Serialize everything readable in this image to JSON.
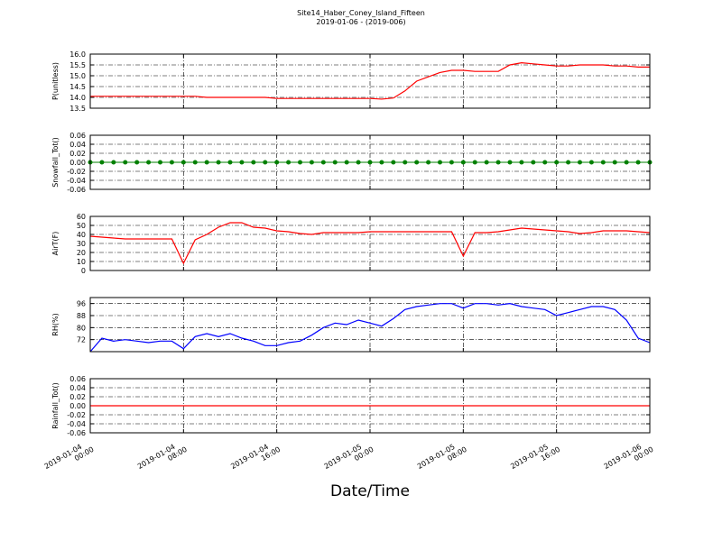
{
  "chart_data": [
    {
      "type": "line",
      "title": "Site14_Haber_Coney_Island_Fifteen",
      "subtitle": "2019-01-06 - (2019-006)",
      "ylabel": "P(unitless)",
      "color": "#ff0000",
      "grid": true,
      "markers": false,
      "x": [
        "2019-01-04 00:00",
        "2019-01-04 01:00",
        "2019-01-04 02:00",
        "2019-01-04 03:00",
        "2019-01-04 04:00",
        "2019-01-04 05:00",
        "2019-01-04 06:00",
        "2019-01-04 07:00",
        "2019-01-04 08:00",
        "2019-01-04 09:00",
        "2019-01-04 10:00",
        "2019-01-04 11:00",
        "2019-01-04 12:00",
        "2019-01-04 13:00",
        "2019-01-04 14:00",
        "2019-01-04 15:00",
        "2019-01-04 16:00",
        "2019-01-04 17:00",
        "2019-01-04 18:00",
        "2019-01-04 19:00",
        "2019-01-04 20:00",
        "2019-01-04 21:00",
        "2019-01-04 22:00",
        "2019-01-04 23:00",
        "2019-01-05 00:00",
        "2019-01-05 01:00",
        "2019-01-05 02:00",
        "2019-01-05 03:00",
        "2019-01-05 04:00",
        "2019-01-05 05:00",
        "2019-01-05 06:00",
        "2019-01-05 07:00",
        "2019-01-05 08:00",
        "2019-01-05 09:00",
        "2019-01-05 10:00",
        "2019-01-05 11:00",
        "2019-01-05 12:00",
        "2019-01-05 13:00",
        "2019-01-05 14:00",
        "2019-01-05 15:00",
        "2019-01-05 16:00",
        "2019-01-05 17:00",
        "2019-01-05 18:00",
        "2019-01-05 19:00",
        "2019-01-05 20:00",
        "2019-01-05 21:00",
        "2019-01-05 22:00",
        "2019-01-05 23:00",
        "2019-01-06 00:00"
      ],
      "values": [
        14.05,
        14.05,
        14.05,
        14.05,
        14.05,
        14.05,
        14.05,
        14.05,
        14.05,
        14.05,
        14.0,
        14.0,
        14.0,
        14.0,
        14.0,
        14.0,
        13.95,
        13.95,
        13.95,
        13.95,
        13.95,
        13.95,
        13.95,
        13.95,
        13.95,
        13.92,
        13.97,
        14.3,
        14.75,
        14.95,
        15.15,
        15.25,
        15.25,
        15.2,
        15.2,
        15.2,
        15.5,
        15.6,
        15.55,
        15.5,
        15.45,
        15.45,
        15.5,
        15.5,
        15.5,
        15.45,
        15.45,
        15.4,
        15.4
      ],
      "xlim": [
        "2019-01-04 00:00",
        "2019-01-06 00:00"
      ],
      "xticks": [
        "2019-01-04 00:00",
        "2019-01-04 08:00",
        "2019-01-04 16:00",
        "2019-01-05 00:00",
        "2019-01-05 08:00",
        "2019-01-05 16:00",
        "2019-01-06 00:00"
      ],
      "ylim": [
        13.5,
        16.0
      ],
      "yticks": [
        13.5,
        {
          "value": 14,
          "label": "14.0"
        },
        14.5,
        {
          "value": 15,
          "label": "15.0"
        },
        15.5,
        {
          "value": 16,
          "label": "16.0"
        }
      ]
    },
    {
      "type": "line",
      "ylabel": "Snowfall_Tot()",
      "color": "#008000",
      "grid": true,
      "markers": true,
      "x": [
        "2019-01-04 00:00",
        "2019-01-04 01:00",
        "2019-01-04 02:00",
        "2019-01-04 03:00",
        "2019-01-04 04:00",
        "2019-01-04 05:00",
        "2019-01-04 06:00",
        "2019-01-04 07:00",
        "2019-01-04 08:00",
        "2019-01-04 09:00",
        "2019-01-04 10:00",
        "2019-01-04 11:00",
        "2019-01-04 12:00",
        "2019-01-04 13:00",
        "2019-01-04 14:00",
        "2019-01-04 15:00",
        "2019-01-04 16:00",
        "2019-01-04 17:00",
        "2019-01-04 18:00",
        "2019-01-04 19:00",
        "2019-01-04 20:00",
        "2019-01-04 21:00",
        "2019-01-04 22:00",
        "2019-01-04 23:00",
        "2019-01-05 00:00",
        "2019-01-05 01:00",
        "2019-01-05 02:00",
        "2019-01-05 03:00",
        "2019-01-05 04:00",
        "2019-01-05 05:00",
        "2019-01-05 06:00",
        "2019-01-05 07:00",
        "2019-01-05 08:00",
        "2019-01-05 09:00",
        "2019-01-05 10:00",
        "2019-01-05 11:00",
        "2019-01-05 12:00",
        "2019-01-05 13:00",
        "2019-01-05 14:00",
        "2019-01-05 15:00",
        "2019-01-05 16:00",
        "2019-01-05 17:00",
        "2019-01-05 18:00",
        "2019-01-05 19:00",
        "2019-01-05 20:00",
        "2019-01-05 21:00",
        "2019-01-05 22:00",
        "2019-01-05 23:00",
        "2019-01-06 00:00"
      ],
      "values": [
        0,
        0,
        0,
        0,
        0,
        0,
        0,
        0,
        0,
        0,
        0,
        0,
        0,
        0,
        0,
        0,
        0,
        0,
        0,
        0,
        0,
        0,
        0,
        0,
        0,
        0,
        0,
        0,
        0,
        0,
        0,
        0,
        0,
        0,
        0,
        0,
        0,
        0,
        0,
        0,
        0,
        0,
        0,
        0,
        0,
        0,
        0,
        0,
        0
      ],
      "xlim": [
        "2019-01-04 00:00",
        "2019-01-06 00:00"
      ],
      "xticks": [
        "2019-01-04 00:00",
        "2019-01-04 08:00",
        "2019-01-04 16:00",
        "2019-01-05 00:00",
        "2019-01-05 08:00",
        "2019-01-05 16:00",
        "2019-01-06 00:00"
      ],
      "ylim": [
        -0.06,
        0.06
      ],
      "yticks": [
        -0.06,
        -0.04,
        -0.02,
        {
          "value": 0,
          "label": "0.00"
        },
        0.02,
        0.04,
        0.06
      ]
    },
    {
      "type": "line",
      "ylabel": "AirT(F)",
      "color": "#ff0000",
      "grid": true,
      "markers": false,
      "x": [
        "2019-01-04 00:00",
        "2019-01-04 01:00",
        "2019-01-04 02:00",
        "2019-01-04 03:00",
        "2019-01-04 04:00",
        "2019-01-04 05:00",
        "2019-01-04 06:00",
        "2019-01-04 07:00",
        "2019-01-04 08:00",
        "2019-01-04 09:00",
        "2019-01-04 10:00",
        "2019-01-04 11:00",
        "2019-01-04 12:00",
        "2019-01-04 13:00",
        "2019-01-04 14:00",
        "2019-01-04 15:00",
        "2019-01-04 16:00",
        "2019-01-04 17:00",
        "2019-01-04 18:00",
        "2019-01-04 19:00",
        "2019-01-04 20:00",
        "2019-01-04 21:00",
        "2019-01-04 22:00",
        "2019-01-04 23:00",
        "2019-01-05 00:00",
        "2019-01-05 01:00",
        "2019-01-05 02:00",
        "2019-01-05 03:00",
        "2019-01-05 04:00",
        "2019-01-05 05:00",
        "2019-01-05 06:00",
        "2019-01-05 07:00",
        "2019-01-05 08:00",
        "2019-01-05 09:00",
        "2019-01-05 10:00",
        "2019-01-05 11:00",
        "2019-01-05 12:00",
        "2019-01-05 13:00",
        "2019-01-05 14:00",
        "2019-01-05 15:00",
        "2019-01-05 16:00",
        "2019-01-05 17:00",
        "2019-01-05 18:00",
        "2019-01-05 19:00",
        "2019-01-05 20:00",
        "2019-01-05 21:00",
        "2019-01-05 22:00",
        "2019-01-05 23:00",
        "2019-01-06 00:00"
      ],
      "values": [
        38,
        37,
        36,
        35,
        35,
        35,
        35,
        35,
        8,
        34,
        40,
        48,
        53,
        53,
        48,
        47,
        44,
        43,
        41,
        40,
        42,
        42,
        42,
        42,
        43,
        43,
        43,
        43,
        43,
        43,
        43,
        43,
        16,
        42,
        42,
        43,
        45,
        47,
        46,
        45,
        44,
        43,
        41,
        42,
        44,
        44,
        44,
        43,
        42
      ],
      "xlim": [
        "2019-01-04 00:00",
        "2019-01-06 00:00"
      ],
      "xticks": [
        "2019-01-04 00:00",
        "2019-01-04 08:00",
        "2019-01-04 16:00",
        "2019-01-05 00:00",
        "2019-01-05 08:00",
        "2019-01-05 16:00",
        "2019-01-06 00:00"
      ],
      "ylim": [
        0,
        60
      ],
      "yticks": [
        0,
        10,
        20,
        30,
        40,
        50,
        60
      ]
    },
    {
      "type": "line",
      "ylabel": "RH(%)",
      "color": "#0000ff",
      "grid": true,
      "markers": false,
      "x": [
        "2019-01-04 00:00",
        "2019-01-04 01:00",
        "2019-01-04 02:00",
        "2019-01-04 03:00",
        "2019-01-04 04:00",
        "2019-01-04 05:00",
        "2019-01-04 06:00",
        "2019-01-04 07:00",
        "2019-01-04 08:00",
        "2019-01-04 09:00",
        "2019-01-04 10:00",
        "2019-01-04 11:00",
        "2019-01-04 12:00",
        "2019-01-04 13:00",
        "2019-01-04 14:00",
        "2019-01-04 15:00",
        "2019-01-04 16:00",
        "2019-01-04 17:00",
        "2019-01-04 18:00",
        "2019-01-04 19:00",
        "2019-01-04 20:00",
        "2019-01-04 21:00",
        "2019-01-04 22:00",
        "2019-01-04 23:00",
        "2019-01-05 00:00",
        "2019-01-05 01:00",
        "2019-01-05 02:00",
        "2019-01-05 03:00",
        "2019-01-05 04:00",
        "2019-01-05 05:00",
        "2019-01-05 06:00",
        "2019-01-05 07:00",
        "2019-01-05 08:00",
        "2019-01-05 09:00",
        "2019-01-05 10:00",
        "2019-01-05 11:00",
        "2019-01-05 12:00",
        "2019-01-05 13:00",
        "2019-01-05 14:00",
        "2019-01-05 15:00",
        "2019-01-05 16:00",
        "2019-01-05 17:00",
        "2019-01-05 18:00",
        "2019-01-05 19:00",
        "2019-01-05 20:00",
        "2019-01-05 21:00",
        "2019-01-05 22:00",
        "2019-01-05 23:00",
        "2019-01-06 00:00"
      ],
      "values": [
        64,
        73,
        71,
        72,
        71,
        70,
        71,
        71,
        66,
        74,
        76,
        74,
        76,
        73,
        71,
        68,
        68,
        70,
        71,
        75,
        80,
        83,
        82,
        85,
        83,
        81,
        86,
        92,
        94,
        95,
        96,
        96,
        93,
        96,
        96,
        95,
        96,
        94,
        93,
        92,
        88,
        90,
        92,
        94,
        94,
        92,
        85,
        73,
        70
      ],
      "xlim": [
        "2019-01-04 00:00",
        "2019-01-06 00:00"
      ],
      "xticks": [
        "2019-01-04 00:00",
        "2019-01-04 08:00",
        "2019-01-04 16:00",
        "2019-01-05 00:00",
        "2019-01-05 08:00",
        "2019-01-05 16:00",
        "2019-01-06 00:00"
      ],
      "ylim": [
        64,
        100
      ],
      "yticks": [
        72,
        80,
        88,
        96
      ]
    },
    {
      "type": "line",
      "ylabel": "Rainfall_Tot()",
      "xlabel": "Date/Time",
      "color": "#ff0000",
      "grid": true,
      "markers": false,
      "x": [
        "2019-01-04 00:00",
        "2019-01-04 01:00",
        "2019-01-04 02:00",
        "2019-01-04 03:00",
        "2019-01-04 04:00",
        "2019-01-04 05:00",
        "2019-01-04 06:00",
        "2019-01-04 07:00",
        "2019-01-04 08:00",
        "2019-01-04 09:00",
        "2019-01-04 10:00",
        "2019-01-04 11:00",
        "2019-01-04 12:00",
        "2019-01-04 13:00",
        "2019-01-04 14:00",
        "2019-01-04 15:00",
        "2019-01-04 16:00",
        "2019-01-04 17:00",
        "2019-01-04 18:00",
        "2019-01-04 19:00",
        "2019-01-04 20:00",
        "2019-01-04 21:00",
        "2019-01-04 22:00",
        "2019-01-04 23:00",
        "2019-01-05 00:00",
        "2019-01-05 01:00",
        "2019-01-05 02:00",
        "2019-01-05 03:00",
        "2019-01-05 04:00",
        "2019-01-05 05:00",
        "2019-01-05 06:00",
        "2019-01-05 07:00",
        "2019-01-05 08:00",
        "2019-01-05 09:00",
        "2019-01-05 10:00",
        "2019-01-05 11:00",
        "2019-01-05 12:00",
        "2019-01-05 13:00",
        "2019-01-05 14:00",
        "2019-01-05 15:00",
        "2019-01-05 16:00",
        "2019-01-05 17:00",
        "2019-01-05 18:00",
        "2019-01-05 19:00",
        "2019-01-05 20:00",
        "2019-01-05 21:00",
        "2019-01-05 22:00",
        "2019-01-05 23:00",
        "2019-01-06 00:00"
      ],
      "values": [
        0,
        0,
        0,
        0,
        0,
        0,
        0,
        0,
        0,
        0,
        0,
        0,
        0,
        0,
        0,
        0,
        0,
        0,
        0,
        0,
        0,
        0,
        0,
        0,
        0,
        0,
        0,
        0,
        0,
        0,
        0,
        0,
        0,
        0,
        0,
        0,
        0,
        0,
        0,
        0,
        0,
        0,
        0,
        0,
        0,
        0,
        0,
        0,
        0
      ],
      "xlim": [
        "2019-01-04 00:00",
        "2019-01-06 00:00"
      ],
      "xticks": [
        "2019-01-04 00:00",
        "2019-01-04 08:00",
        "2019-01-04 16:00",
        "2019-01-05 00:00",
        "2019-01-05 08:00",
        "2019-01-05 16:00",
        "2019-01-06 00:00"
      ],
      "ylim": [
        -0.06,
        0.06
      ],
      "yticks": [
        -0.06,
        -0.04,
        -0.02,
        {
          "value": 0,
          "label": "0.00"
        },
        0.02,
        0.04,
        0.06
      ]
    }
  ]
}
